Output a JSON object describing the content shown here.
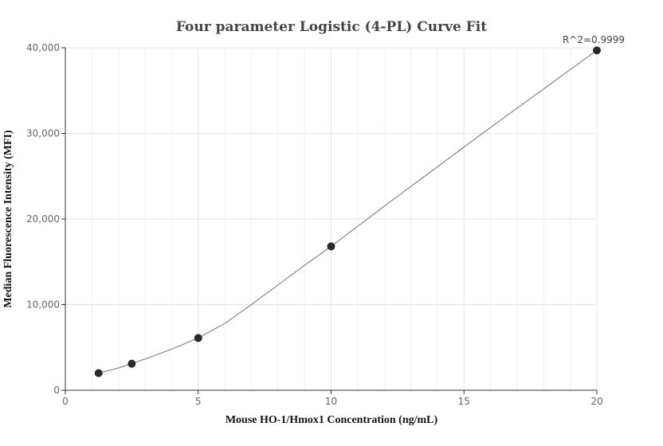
{
  "chart_data": {
    "type": "scatter",
    "title": "Four parameter Logistic (4-PL) Curve Fit",
    "xlabel": "Mouse HO-1/Hmox1 Concentration (ng/mL)",
    "ylabel": "Median Fluorescence Intensity (MFI)",
    "xlim": [
      0,
      20
    ],
    "ylim": [
      0,
      40000
    ],
    "x_ticks": [
      0,
      5,
      10,
      15,
      20
    ],
    "x_tick_labels": [
      "0",
      "5",
      "10",
      "15",
      "20"
    ],
    "y_ticks": [
      0,
      10000,
      20000,
      30000,
      40000
    ],
    "y_tick_labels": [
      "0",
      "10,000",
      "20,000",
      "30,000",
      "40,000"
    ],
    "grid": true,
    "annotation": "R^2=0.9999",
    "points": {
      "x": [
        1.25,
        2.5,
        5,
        10,
        20
      ],
      "y": [
        2000,
        3100,
        6100,
        16800,
        39700
      ]
    },
    "fit_curve": {
      "x": [
        1.25,
        2,
        3,
        4,
        5,
        6,
        7,
        8,
        9,
        10,
        12,
        14,
        16,
        18,
        20
      ],
      "y": [
        2000,
        2600,
        3650,
        4800,
        6100,
        7800,
        10000,
        12300,
        14600,
        16800,
        21500,
        26100,
        30700,
        35200,
        39700
      ]
    },
    "colors": {
      "point": "#2b2b2b",
      "curve": "#888888",
      "grid": "#e6e6e6",
      "minor_grid": "#f2f2f2",
      "axis": "#333333"
    }
  }
}
